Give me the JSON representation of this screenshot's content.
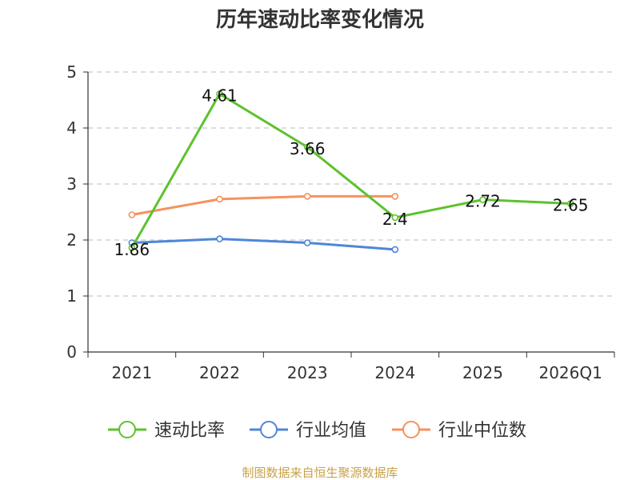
{
  "chart_data": {
    "type": "line",
    "title": "历年速动比率变化情况",
    "categories": [
      "2021",
      "2022",
      "2023",
      "2024",
      "2025",
      "2026Q1"
    ],
    "ylim": [
      0,
      5
    ],
    "yticks": [
      "0",
      "1",
      "2",
      "3",
      "4",
      "5"
    ],
    "grid": true,
    "legend_position": "bottom",
    "series": [
      {
        "name": "速动比率",
        "color": "#5dc22e",
        "values": [
          1.86,
          4.61,
          3.66,
          2.4,
          2.72,
          2.65
        ],
        "labels": [
          "1.86",
          "4.61",
          "3.66",
          "2.4",
          "2.72",
          "2.65"
        ]
      },
      {
        "name": "行业均值",
        "color": "#4f86d9",
        "values": [
          1.95,
          2.02,
          1.95,
          1.83,
          null,
          null
        ]
      },
      {
        "name": "行业中位数",
        "color": "#f6925e",
        "values": [
          2.45,
          2.73,
          2.78,
          2.78,
          null,
          null
        ]
      }
    ]
  },
  "source": "制图数据来自恒生聚源数据库"
}
